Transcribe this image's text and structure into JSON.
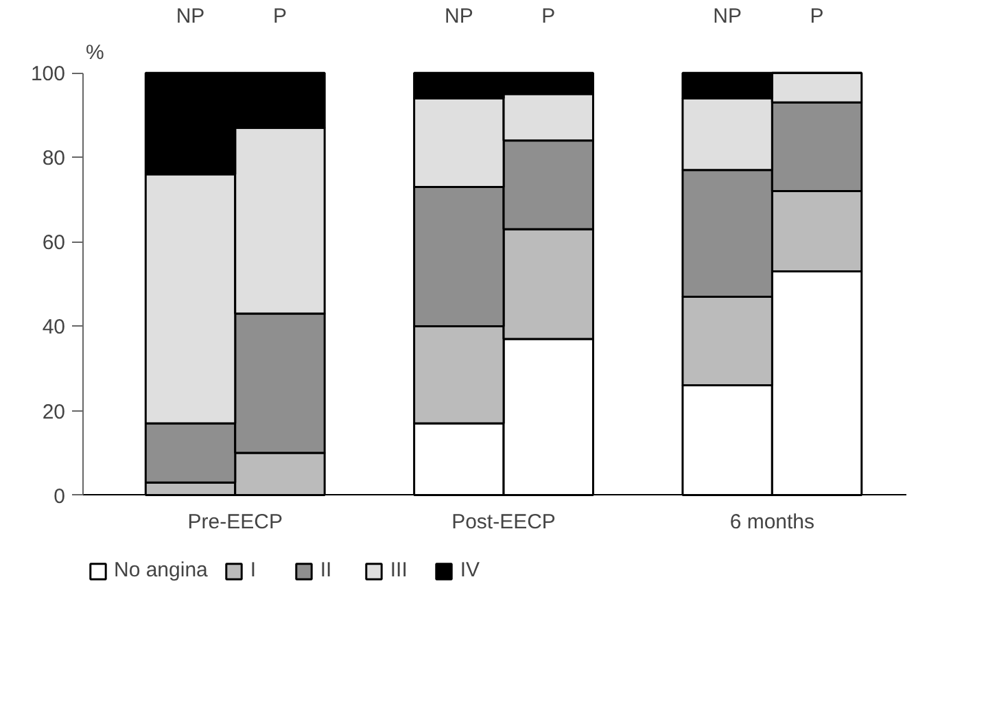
{
  "chart_data": {
    "type": "bar",
    "stacked": true,
    "categories": [
      "NP",
      "P",
      null,
      "NP",
      "P",
      null,
      "NP",
      "P"
    ],
    "series": [
      {
        "name": "No angina",
        "color": "#ffffff",
        "values": [
          0,
          0,
          null,
          17,
          37,
          null,
          26,
          53
        ]
      },
      {
        "name": "I",
        "color": "#bbbbbb",
        "values": [
          3,
          10,
          null,
          23,
          26,
          null,
          21,
          19
        ]
      },
      {
        "name": "II",
        "color": "#8f8f8f",
        "values": [
          14,
          33,
          null,
          33,
          21,
          null,
          30,
          21
        ]
      },
      {
        "name": "III",
        "color": "#dfdfdf",
        "values": [
          59,
          44,
          null,
          21,
          11,
          null,
          17,
          7
        ]
      },
      {
        "name": "IV",
        "color": "#000000",
        "values": [
          24,
          13,
          null,
          6,
          5,
          null,
          6,
          0
        ]
      }
    ],
    "ylabel": "%",
    "ylim": [
      0,
      100
    ],
    "yticks": [
      0,
      20,
      40,
      60,
      80,
      100
    ],
    "annotations": [
      "Pre-EECP",
      "Post-EECP",
      "6 months"
    ],
    "grid": false,
    "legend": "bottom"
  }
}
